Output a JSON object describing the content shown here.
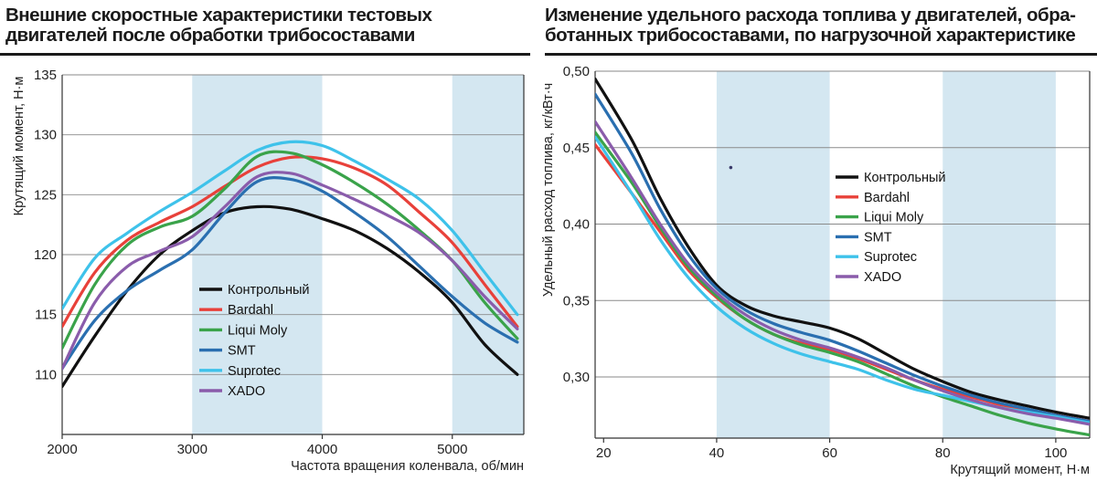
{
  "charts": {
    "left": {
      "title": "Внешние скоростные характеристики тестовых\nдвигателей после обработки трибосоставами"
    },
    "right": {
      "title": "Изменение удельного расхода топлива у двигателей, обра-\nботанных трибосоставами, по нагрузочной характеристике"
    }
  },
  "chart_data": [
    {
      "type": "line",
      "title": "Внешние скоростные характеристики тестовых двигателей после обработки трибосоставами",
      "xlabel": "Частота вращения коленвала, об/мин",
      "ylabel": "Крутящий момент, Н·м",
      "xlim": [
        2000,
        5550
      ],
      "ylim": [
        105,
        135
      ],
      "xticks": [
        2000,
        3000,
        4000,
        5000
      ],
      "yticks": [
        110,
        115,
        120,
        125,
        130,
        135
      ],
      "highlight_bands": [
        [
          3000,
          4000
        ],
        [
          5000,
          5550
        ]
      ],
      "grid": "horizontal",
      "legend_position": "center",
      "series": [
        {
          "name": "Контрольный",
          "color": "#111111",
          "x": [
            2000,
            2250,
            2500,
            2750,
            3000,
            3250,
            3500,
            3750,
            4000,
            4250,
            4500,
            4750,
            5000,
            5250,
            5500
          ],
          "values": [
            109,
            113.2,
            117,
            120,
            122,
            123.5,
            124,
            123.8,
            123,
            122,
            120.5,
            118.5,
            116,
            112.5,
            110
          ]
        },
        {
          "name": "Bardahl",
          "color": "#e8413a",
          "x": [
            2000,
            2250,
            2500,
            2750,
            3000,
            3250,
            3500,
            3750,
            4000,
            4250,
            4500,
            4750,
            5000,
            5250,
            5500
          ],
          "values": [
            114,
            118.5,
            121.2,
            122.7,
            124,
            125.7,
            127.3,
            128.1,
            128,
            127.2,
            125.8,
            123.5,
            121,
            117.5,
            114
          ]
        },
        {
          "name": "Liqui Moly",
          "color": "#3aa34a",
          "x": [
            2000,
            2250,
            2500,
            2750,
            3000,
            3250,
            3500,
            3750,
            4000,
            4250,
            4500,
            4750,
            5000,
            5250,
            5500
          ],
          "values": [
            112.2,
            117.5,
            120.8,
            122.3,
            123.2,
            125.5,
            128.2,
            128.5,
            127.5,
            126,
            124.2,
            122,
            119.5,
            116,
            113
          ]
        },
        {
          "name": "SMT",
          "color": "#2a6fb0",
          "x": [
            2000,
            2250,
            2500,
            2750,
            3000,
            3250,
            3500,
            3750,
            4000,
            4250,
            4500,
            4750,
            5000,
            5250,
            5500
          ],
          "values": [
            110.5,
            114.5,
            117,
            118.7,
            120.4,
            123.5,
            126.1,
            126.3,
            125.3,
            123.5,
            121.5,
            119,
            116.5,
            114.3,
            112.7
          ]
        },
        {
          "name": "Suprotec",
          "color": "#3ec2ea",
          "x": [
            2000,
            2250,
            2500,
            2750,
            3000,
            3250,
            3500,
            3750,
            4000,
            4250,
            4500,
            4750,
            5000,
            5250,
            5500
          ],
          "values": [
            115.5,
            119.7,
            121.8,
            123.6,
            125.2,
            127,
            128.7,
            129.4,
            129.1,
            127.8,
            126.3,
            124.6,
            122,
            118.5,
            115
          ]
        },
        {
          "name": "XADO",
          "color": "#8a5cab",
          "x": [
            2000,
            2250,
            2500,
            2750,
            3000,
            3250,
            3500,
            3750,
            4000,
            4250,
            4500,
            4750,
            5000,
            5250,
            5500
          ],
          "values": [
            110.5,
            116,
            119,
            120.3,
            121.5,
            124,
            126.5,
            126.8,
            125.8,
            124.6,
            123.3,
            121.8,
            119.5,
            116.5,
            113.8
          ]
        }
      ]
    },
    {
      "type": "line",
      "title": "Изменение удельного расхода топлива у двигателей, обработанных трибосоставами, по нагрузочной характеристике",
      "xlabel": "Крутящий момент, Н·м",
      "ylabel": "Удельный расход топлива, кг/кВт·ч",
      "xlim": [
        18.5,
        106
      ],
      "ylim": [
        0.26,
        0.5
      ],
      "xticks": [
        20,
        40,
        60,
        80,
        100
      ],
      "yticks": [
        0.3,
        0.35,
        0.4,
        0.45,
        0.5
      ],
      "ytick_labels": [
        "0,30",
        "0,35",
        "0,40",
        "0,45",
        "0,50"
      ],
      "highlight_bands": [
        [
          40,
          60
        ],
        [
          80,
          100
        ]
      ],
      "grid": "horizontal",
      "legend_position": "center-right",
      "annotation_point": [
        42.5,
        0.437
      ],
      "series": [
        {
          "name": "Контрольный",
          "color": "#111111",
          "x": [
            18.5,
            25,
            30,
            35,
            40,
            45,
            50,
            55,
            60,
            65,
            70,
            75,
            80,
            85,
            90,
            95,
            100,
            106
          ],
          "values": [
            0.495,
            0.455,
            0.417,
            0.385,
            0.36,
            0.347,
            0.34,
            0.336,
            0.332,
            0.325,
            0.315,
            0.305,
            0.297,
            0.29,
            0.285,
            0.281,
            0.277,
            0.273
          ]
        },
        {
          "name": "Bardahl",
          "color": "#e8413a",
          "x": [
            18.5,
            25,
            30,
            35,
            40,
            45,
            50,
            55,
            60,
            65,
            70,
            75,
            80,
            85,
            90,
            95,
            100,
            106
          ],
          "values": [
            0.452,
            0.42,
            0.395,
            0.37,
            0.352,
            0.338,
            0.328,
            0.322,
            0.318,
            0.312,
            0.305,
            0.298,
            0.292,
            0.287,
            0.282,
            0.278,
            0.275,
            0.271
          ]
        },
        {
          "name": "Liqui Moly",
          "color": "#3aa34a",
          "x": [
            18.5,
            25,
            30,
            35,
            40,
            45,
            50,
            55,
            60,
            65,
            70,
            75,
            80,
            85,
            90,
            95,
            100,
            106
          ],
          "values": [
            0.46,
            0.427,
            0.398,
            0.372,
            0.353,
            0.338,
            0.328,
            0.321,
            0.316,
            0.31,
            0.302,
            0.294,
            0.287,
            0.281,
            0.275,
            0.27,
            0.266,
            0.262
          ]
        },
        {
          "name": "SMT",
          "color": "#2a6fb0",
          "x": [
            18.5,
            25,
            30,
            35,
            40,
            45,
            50,
            55,
            60,
            65,
            70,
            75,
            80,
            85,
            90,
            95,
            100,
            106
          ],
          "values": [
            0.485,
            0.446,
            0.41,
            0.38,
            0.358,
            0.344,
            0.335,
            0.329,
            0.324,
            0.317,
            0.309,
            0.301,
            0.294,
            0.288,
            0.283,
            0.279,
            0.275,
            0.271
          ]
        },
        {
          "name": "Suprotec",
          "color": "#3ec2ea",
          "x": [
            18.5,
            25,
            30,
            35,
            40,
            45,
            50,
            55,
            60,
            65,
            70,
            75,
            80,
            85,
            90,
            95,
            100,
            106
          ],
          "values": [
            0.457,
            0.42,
            0.39,
            0.365,
            0.346,
            0.332,
            0.322,
            0.315,
            0.31,
            0.305,
            0.298,
            0.292,
            0.288,
            0.284,
            0.28,
            0.277,
            0.274,
            0.27
          ]
        },
        {
          "name": "XADO",
          "color": "#8a5cab",
          "x": [
            18.5,
            25,
            30,
            35,
            40,
            45,
            50,
            55,
            60,
            65,
            70,
            75,
            80,
            85,
            90,
            95,
            100,
            106
          ],
          "values": [
            0.467,
            0.43,
            0.4,
            0.374,
            0.355,
            0.341,
            0.331,
            0.324,
            0.319,
            0.313,
            0.306,
            0.298,
            0.291,
            0.285,
            0.28,
            0.276,
            0.273,
            0.269
          ]
        }
      ]
    }
  ]
}
